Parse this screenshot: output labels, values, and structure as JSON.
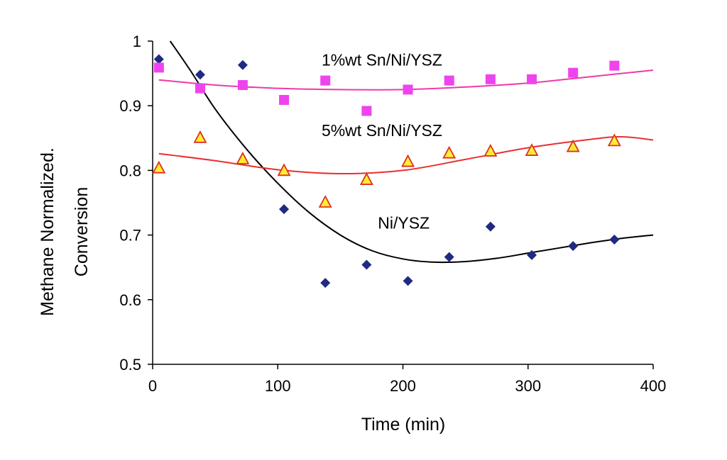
{
  "chart_data": {
    "type": "scatter",
    "title": "",
    "xlabel": "Time (min)",
    "ylabel_lines": [
      "Methane Normalized.",
      "Conversion"
    ],
    "xlim": [
      0,
      400
    ],
    "ylim": [
      0.5,
      1
    ],
    "x_ticks": [
      0,
      100,
      200,
      300,
      400
    ],
    "x_tick_labels": [
      "0",
      "100",
      "200",
      "300",
      "400"
    ],
    "y_ticks": [
      0.5,
      0.6,
      0.7,
      0.8,
      0.9,
      1
    ],
    "y_tick_labels": [
      "0.5",
      "0.6",
      "0.7",
      "0.8",
      "0.9",
      "1"
    ],
    "grid": false,
    "legend": "none",
    "series": [
      {
        "name": "Ni/YSZ",
        "marker": "diamond",
        "color": "#1f2a80",
        "curve_color": "#000000",
        "points": [
          {
            "x": 5,
            "y": 0.972
          },
          {
            "x": 38,
            "y": 0.948
          },
          {
            "x": 72,
            "y": 0.963
          },
          {
            "x": 105,
            "y": 0.74
          },
          {
            "x": 138,
            "y": 0.626
          },
          {
            "x": 171,
            "y": 0.654
          },
          {
            "x": 204,
            "y": 0.629
          },
          {
            "x": 237,
            "y": 0.666
          },
          {
            "x": 270,
            "y": 0.713
          },
          {
            "x": 303,
            "y": 0.669
          },
          {
            "x": 336,
            "y": 0.683
          },
          {
            "x": 369,
            "y": 0.693
          }
        ],
        "trend": [
          {
            "x": 14,
            "y": 1.0
          },
          {
            "x": 30,
            "y": 0.955
          },
          {
            "x": 50,
            "y": 0.895
          },
          {
            "x": 75,
            "y": 0.833
          },
          {
            "x": 100,
            "y": 0.78
          },
          {
            "x": 125,
            "y": 0.735
          },
          {
            "x": 150,
            "y": 0.7
          },
          {
            "x": 175,
            "y": 0.676
          },
          {
            "x": 200,
            "y": 0.663
          },
          {
            "x": 225,
            "y": 0.658
          },
          {
            "x": 250,
            "y": 0.659
          },
          {
            "x": 275,
            "y": 0.664
          },
          {
            "x": 300,
            "y": 0.672
          },
          {
            "x": 325,
            "y": 0.68
          },
          {
            "x": 350,
            "y": 0.688
          },
          {
            "x": 375,
            "y": 0.695
          },
          {
            "x": 400,
            "y": 0.7
          }
        ]
      },
      {
        "name": "1%wt Sn/Ni/YSZ",
        "marker": "square",
        "color": "#ee44ee",
        "curve_color": "#ee3aa8",
        "points": [
          {
            "x": 5,
            "y": 0.959
          },
          {
            "x": 38,
            "y": 0.927
          },
          {
            "x": 72,
            "y": 0.932
          },
          {
            "x": 105,
            "y": 0.909
          },
          {
            "x": 138,
            "y": 0.939
          },
          {
            "x": 171,
            "y": 0.892
          },
          {
            "x": 204,
            "y": 0.925
          },
          {
            "x": 237,
            "y": 0.939
          },
          {
            "x": 270,
            "y": 0.941
          },
          {
            "x": 303,
            "y": 0.941
          },
          {
            "x": 336,
            "y": 0.951
          },
          {
            "x": 369,
            "y": 0.962
          }
        ],
        "trend": [
          {
            "x": 5,
            "y": 0.94
          },
          {
            "x": 50,
            "y": 0.932
          },
          {
            "x": 100,
            "y": 0.927
          },
          {
            "x": 150,
            "y": 0.925
          },
          {
            "x": 200,
            "y": 0.925
          },
          {
            "x": 250,
            "y": 0.929
          },
          {
            "x": 300,
            "y": 0.935
          },
          {
            "x": 350,
            "y": 0.945
          },
          {
            "x": 400,
            "y": 0.955
          }
        ]
      },
      {
        "name": "5%wt Sn/Ni/YSZ",
        "marker": "triangle",
        "color": "#ffee33",
        "stroke": "#e03020",
        "curve_color": "#e83030",
        "points": [
          {
            "x": 5,
            "y": 0.803
          },
          {
            "x": 38,
            "y": 0.85
          },
          {
            "x": 72,
            "y": 0.817
          },
          {
            "x": 105,
            "y": 0.799
          },
          {
            "x": 138,
            "y": 0.75
          },
          {
            "x": 171,
            "y": 0.785
          },
          {
            "x": 204,
            "y": 0.813
          },
          {
            "x": 237,
            "y": 0.826
          },
          {
            "x": 270,
            "y": 0.829
          },
          {
            "x": 303,
            "y": 0.83
          },
          {
            "x": 336,
            "y": 0.836
          },
          {
            "x": 369,
            "y": 0.845
          }
        ],
        "trend": [
          {
            "x": 5,
            "y": 0.826
          },
          {
            "x": 50,
            "y": 0.815
          },
          {
            "x": 100,
            "y": 0.801
          },
          {
            "x": 150,
            "y": 0.795
          },
          {
            "x": 200,
            "y": 0.8
          },
          {
            "x": 250,
            "y": 0.817
          },
          {
            "x": 300,
            "y": 0.835
          },
          {
            "x": 350,
            "y": 0.848
          },
          {
            "x": 375,
            "y": 0.852
          },
          {
            "x": 400,
            "y": 0.847
          }
        ]
      }
    ],
    "annotations": [
      {
        "text": "1%wt Sn/Ni/YSZ",
        "x": 135,
        "y": 0.962
      },
      {
        "text": "5%wt Sn/Ni/YSZ",
        "x": 135,
        "y": 0.853
      },
      {
        "text": "Ni/YSZ",
        "x": 180,
        "y": 0.71
      }
    ]
  }
}
